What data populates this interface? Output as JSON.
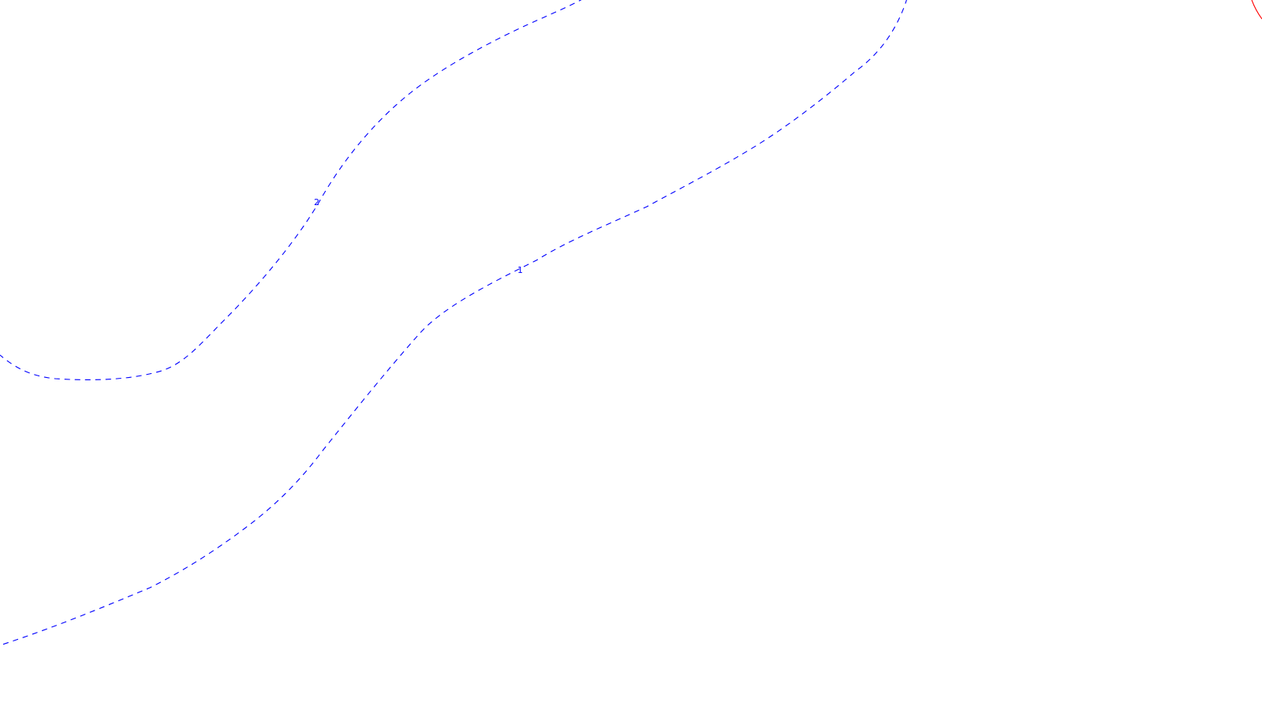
{
  "map": {
    "contours": [
      {
        "id": "contour-1",
        "label": "1",
        "color": "#0000ff",
        "style": "dashed"
      },
      {
        "id": "contour-2",
        "label": "2",
        "color": "#0000ff",
        "style": "dashed"
      },
      {
        "id": "contour-red",
        "label": "",
        "color": "#ff0000",
        "style": "solid"
      }
    ]
  }
}
